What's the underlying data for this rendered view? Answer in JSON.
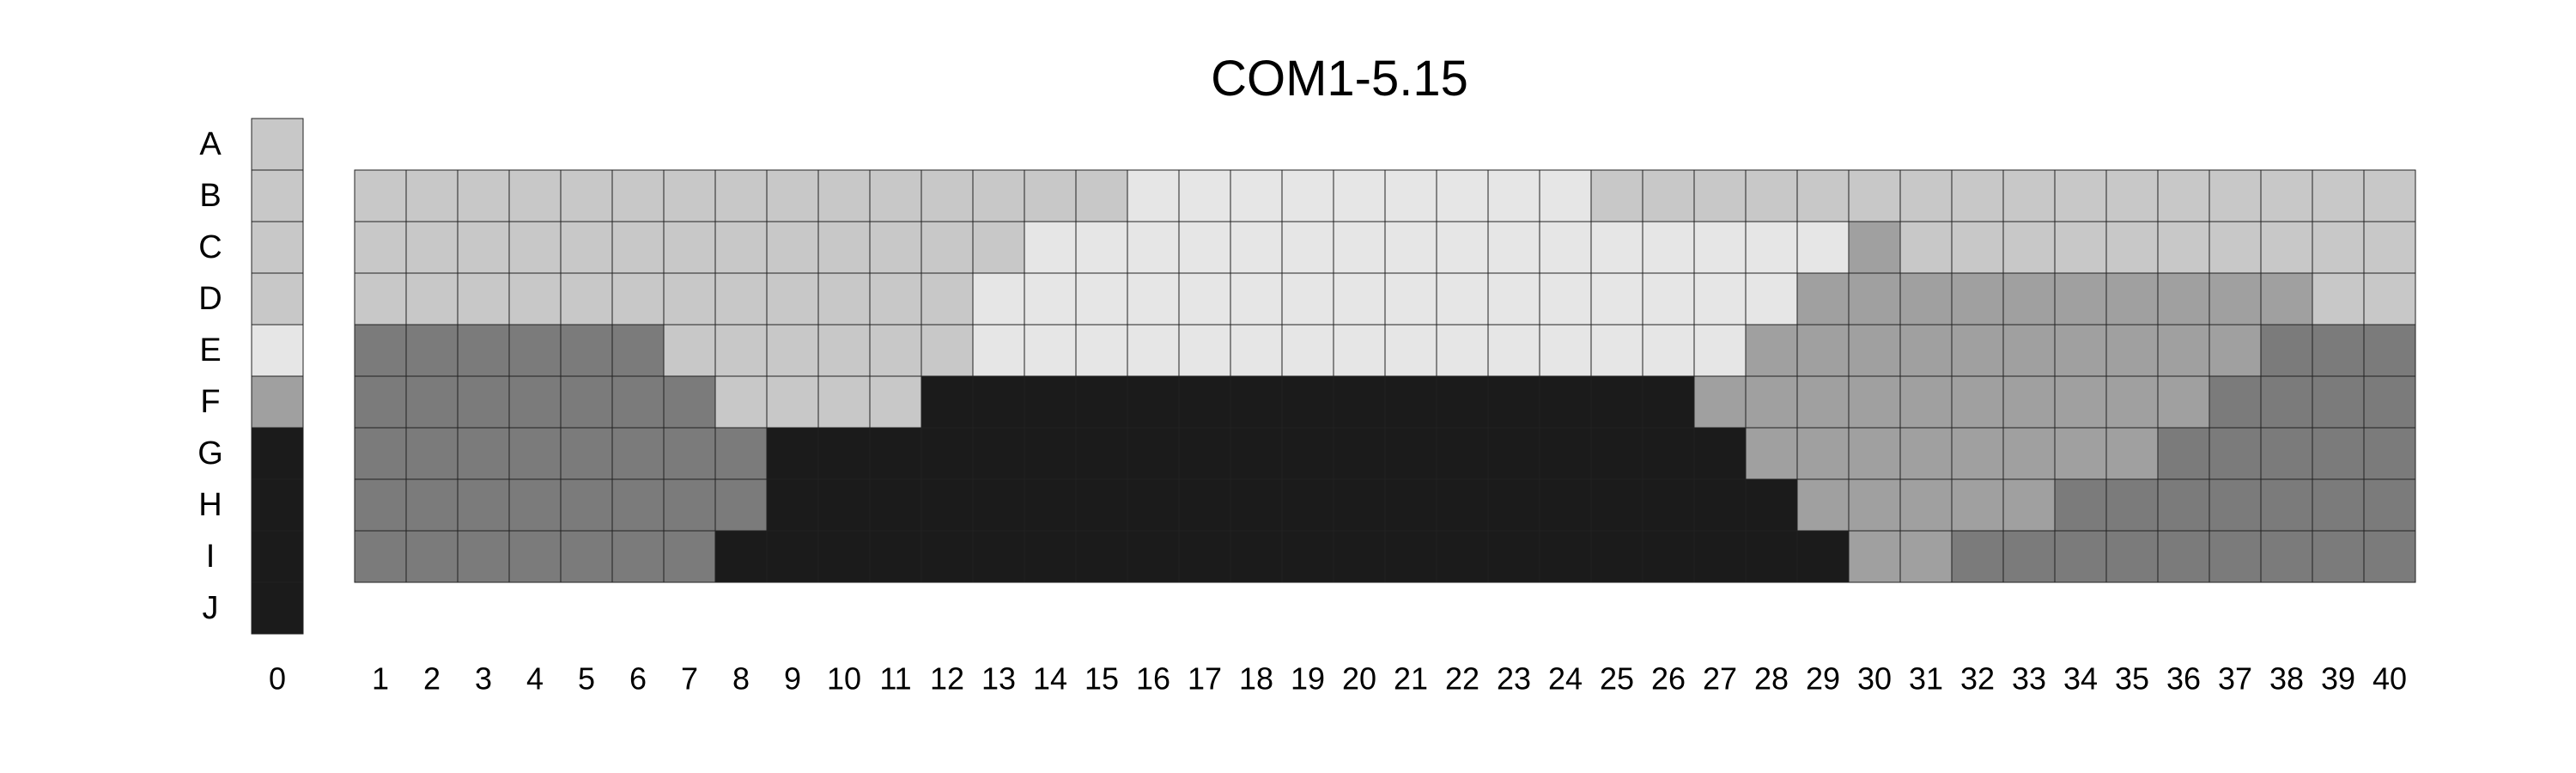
{
  "chart_data": {
    "type": "heatmap",
    "title": "COM1-5.15",
    "rows": [
      "A",
      "B",
      "C",
      "D",
      "E",
      "F",
      "G",
      "H",
      "I",
      "J"
    ],
    "reference_column": {
      "label": "0",
      "levels": [
        1,
        1,
        1,
        1,
        0,
        2,
        4,
        4,
        4,
        4
      ]
    },
    "columns": [
      "1",
      "2",
      "3",
      "4",
      "5",
      "6",
      "7",
      "8",
      "9",
      "10",
      "11",
      "12",
      "13",
      "14",
      "15",
      "16",
      "17",
      "18",
      "19",
      "20",
      "21",
      "22",
      "23",
      "24",
      "25",
      "26",
      "27",
      "28",
      "29",
      "30",
      "31",
      "32",
      "33",
      "34",
      "35",
      "36",
      "37",
      "38",
      "39",
      "40"
    ],
    "grid_rows": [
      "B",
      "C",
      "D",
      "E",
      "F",
      "G",
      "H",
      "I"
    ],
    "levels": [
      [
        1,
        1,
        1,
        1,
        1,
        1,
        1,
        1,
        1,
        1,
        1,
        1,
        1,
        1,
        1,
        0,
        0,
        0,
        0,
        0,
        0,
        0,
        0,
        0,
        1,
        1,
        1,
        1,
        1,
        1,
        1,
        1,
        1,
        1,
        1,
        1,
        1,
        1,
        1,
        1
      ],
      [
        1,
        1,
        1,
        1,
        1,
        1,
        1,
        1,
        1,
        1,
        1,
        1,
        1,
        0,
        0,
        0,
        0,
        0,
        0,
        0,
        0,
        0,
        0,
        0,
        0,
        0,
        0,
        0,
        0,
        2,
        1,
        1,
        1,
        1,
        1,
        1,
        1,
        1,
        1,
        1
      ],
      [
        1,
        1,
        1,
        1,
        1,
        1,
        1,
        1,
        1,
        1,
        1,
        1,
        0,
        0,
        0,
        0,
        0,
        0,
        0,
        0,
        0,
        0,
        0,
        0,
        0,
        0,
        0,
        0,
        2,
        2,
        2,
        2,
        2,
        2,
        2,
        2,
        2,
        2,
        1,
        1
      ],
      [
        3,
        3,
        3,
        3,
        3,
        3,
        1,
        1,
        1,
        1,
        1,
        1,
        0,
        0,
        0,
        0,
        0,
        0,
        0,
        0,
        0,
        0,
        0,
        0,
        0,
        0,
        0,
        2,
        2,
        2,
        2,
        2,
        2,
        2,
        2,
        2,
        2,
        3,
        3,
        3
      ],
      [
        3,
        3,
        3,
        3,
        3,
        3,
        3,
        1,
        1,
        1,
        1,
        4,
        4,
        4,
        4,
        4,
        4,
        4,
        4,
        4,
        4,
        4,
        4,
        4,
        4,
        4,
        2,
        2,
        2,
        2,
        2,
        2,
        2,
        2,
        2,
        2,
        3,
        3,
        3,
        3
      ],
      [
        3,
        3,
        3,
        3,
        3,
        3,
        3,
        3,
        4,
        4,
        4,
        4,
        4,
        4,
        4,
        4,
        4,
        4,
        4,
        4,
        4,
        4,
        4,
        4,
        4,
        4,
        4,
        2,
        2,
        2,
        2,
        2,
        2,
        2,
        2,
        3,
        3,
        3,
        3,
        3
      ],
      [
        3,
        3,
        3,
        3,
        3,
        3,
        3,
        3,
        4,
        4,
        4,
        4,
        4,
        4,
        4,
        4,
        4,
        4,
        4,
        4,
        4,
        4,
        4,
        4,
        4,
        4,
        4,
        4,
        2,
        2,
        2,
        2,
        2,
        3,
        3,
        3,
        3,
        3,
        3,
        3
      ],
      [
        3,
        3,
        3,
        3,
        3,
        3,
        3,
        4,
        4,
        4,
        4,
        4,
        4,
        4,
        4,
        4,
        4,
        4,
        4,
        4,
        4,
        4,
        4,
        4,
        4,
        4,
        4,
        4,
        4,
        2,
        2,
        3,
        3,
        3,
        3,
        3,
        3,
        3,
        3,
        3
      ]
    ],
    "level_colors": [
      "#e6e6e6",
      "#c8c8c8",
      "#a0a0a0",
      "#7b7b7b",
      "#1b1b1b"
    ],
    "grid": true,
    "legend": "none"
  }
}
